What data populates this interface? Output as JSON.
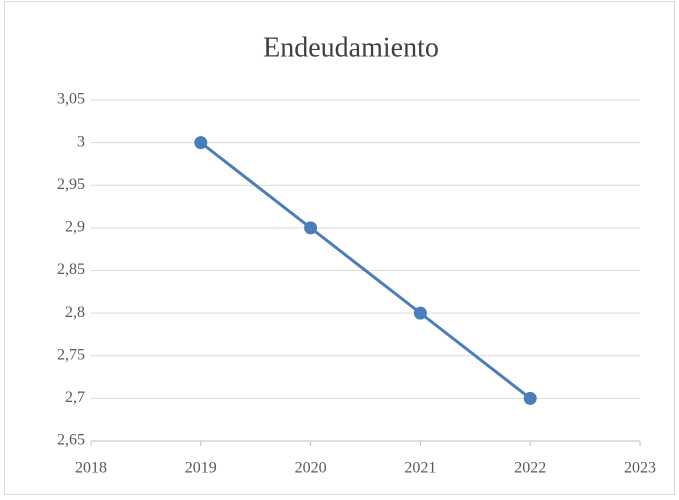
{
  "chart_data": {
    "type": "line",
    "title": "Endeudamiento",
    "x": [
      2019,
      2020,
      2021,
      2022
    ],
    "values": [
      3,
      2.9,
      2.8,
      2.7
    ],
    "color": "#4a7ebb",
    "xlim": [
      2018,
      2023
    ],
    "xticks": [
      2018,
      2019,
      2020,
      2021,
      2022,
      2023
    ],
    "ylim": [
      2.65,
      3.05
    ],
    "yticks": [
      {
        "value": 2.65,
        "label": "2,65"
      },
      {
        "value": 2.7,
        "label": "2,7"
      },
      {
        "value": 2.75,
        "label": "2,75"
      },
      {
        "value": 2.8,
        "label": "2,8"
      },
      {
        "value": 2.85,
        "label": "2,85"
      },
      {
        "value": 2.9,
        "label": "2,9"
      },
      {
        "value": 2.95,
        "label": "2,95"
      },
      3,
      {
        "value": 3.05,
        "label": "3,05"
      }
    ],
    "grid": true
  }
}
